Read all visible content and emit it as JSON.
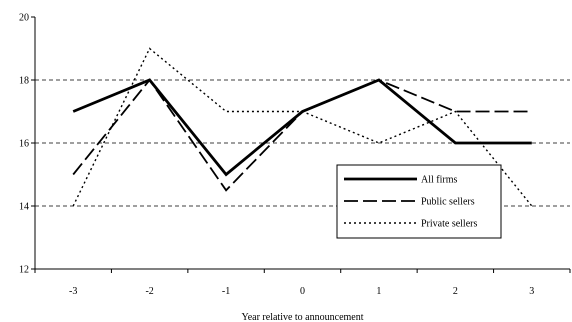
{
  "chart_data": {
    "type": "line",
    "title": "",
    "xlabel": "Year relative to announcement",
    "ylabel": "",
    "categories": [
      "-3",
      "-2",
      "-1",
      "0",
      "1",
      "2",
      "3"
    ],
    "ylim": [
      12,
      20
    ],
    "yticks": [
      "12",
      "14",
      "16",
      "18",
      "20"
    ],
    "grid": "horizontal dashed",
    "legend_position": "right, inside plot",
    "series": [
      {
        "name": "All firms",
        "style": "solid-thick",
        "color": "#000000",
        "values": [
          17,
          18,
          15,
          17,
          18,
          16,
          16
        ]
      },
      {
        "name": "Public sellers",
        "style": "long-dash",
        "color": "#000000",
        "values": [
          15,
          18,
          14.5,
          17,
          18,
          17,
          17
        ]
      },
      {
        "name": "Private sellers",
        "style": "dotted",
        "color": "#000000",
        "values": [
          14,
          19,
          17,
          17,
          16,
          17,
          14
        ]
      }
    ]
  }
}
